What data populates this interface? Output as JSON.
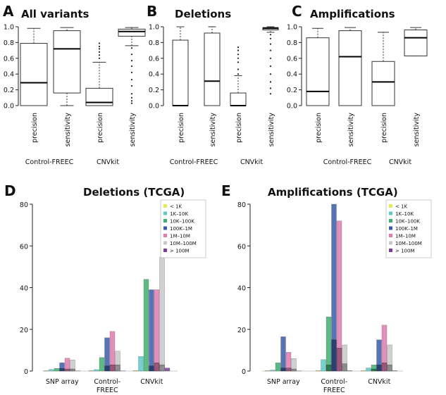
{
  "figure": {
    "chart_data": [
      {
        "panel": "A",
        "type": "box",
        "title": "All variants",
        "ylim": [
          0,
          1.0
        ],
        "yticks": [
          "0.0",
          "0.2",
          "0.4",
          "0.6",
          "0.8",
          "1.0"
        ],
        "boxes": [
          {
            "label": "precision",
            "min": 0.0,
            "q1": 0.0,
            "median": 0.29,
            "q3": 0.79,
            "max": 0.98,
            "outliers": []
          },
          {
            "label": "sensitivity",
            "min": 0.0,
            "q1": 0.16,
            "median": 0.72,
            "q3": 0.95,
            "max": 0.99,
            "outliers": []
          },
          {
            "label": "precision",
            "min": 0.0,
            "q1": 0.0,
            "median": 0.04,
            "q3": 0.22,
            "max": 0.55,
            "outliers": [
              0.6,
              0.64,
              0.68,
              0.72,
              0.75,
              0.79
            ]
          },
          {
            "label": "sensitivity",
            "min": 0.76,
            "q1": 0.88,
            "median": 0.94,
            "q3": 0.97,
            "max": 0.99,
            "outliers": [
              0.73,
              0.65,
              0.57,
              0.5,
              0.42,
              0.33,
              0.25,
              0.15,
              0.1,
              0.06,
              0.03
            ]
          }
        ],
        "groups": [
          "Control-FREEC",
          "CNVkit"
        ]
      },
      {
        "panel": "B",
        "type": "box",
        "title": "Deletions",
        "ylim": [
          0,
          1.0
        ],
        "yticks": [
          "0.0",
          "0.2",
          "0.4",
          "0.6",
          "0.8",
          "1.0"
        ],
        "boxes": [
          {
            "label": "precision",
            "min": 0.0,
            "q1": 0.0,
            "median": 0.0,
            "q3": 0.83,
            "max": 1.0,
            "outliers": []
          },
          {
            "label": "sensitivity",
            "min": 0.0,
            "q1": 0.0,
            "median": 0.31,
            "q3": 0.92,
            "max": 1.0,
            "outliers": []
          },
          {
            "label": "precision",
            "min": 0.0,
            "q1": 0.0,
            "median": 0.0,
            "q3": 0.16,
            "max": 0.38,
            "outliers": [
              0.4,
              0.46,
              0.55,
              0.6,
              0.65,
              0.7,
              0.74
            ]
          },
          {
            "label": "sensitivity",
            "min": 0.93,
            "q1": 0.96,
            "median": 0.98,
            "q3": 0.99,
            "max": 1.0,
            "outliers": [
              0.9,
              0.85,
              0.78,
              0.7,
              0.6,
              0.5,
              0.4,
              0.3,
              0.22,
              0.15
            ]
          }
        ],
        "groups": [
          "Control-FREEC",
          "CNVkit"
        ]
      },
      {
        "panel": "C",
        "type": "box",
        "title": "Amplifications",
        "ylim": [
          0,
          1.0
        ],
        "yticks": [
          "0.0",
          "0.2",
          "0.4",
          "0.6",
          "0.8",
          "1.0"
        ],
        "boxes": [
          {
            "label": "precision",
            "min": 0.0,
            "q1": 0.0,
            "median": 0.18,
            "q3": 0.86,
            "max": 0.98,
            "outliers": []
          },
          {
            "label": "sensitivity",
            "min": 0.0,
            "q1": 0.0,
            "median": 0.62,
            "q3": 0.95,
            "max": 0.99,
            "outliers": []
          },
          {
            "label": "precision",
            "min": 0.0,
            "q1": 0.0,
            "median": 0.3,
            "q3": 0.56,
            "max": 0.93,
            "outliers": []
          },
          {
            "label": "sensitivity",
            "min": 0.63,
            "q1": 0.63,
            "median": 0.86,
            "q3": 0.96,
            "max": 0.99,
            "outliers": []
          }
        ],
        "groups": [
          "Control-FREEC",
          "CNVkit"
        ]
      },
      {
        "panel": "D",
        "type": "bar",
        "title": "Deletions (TCGA)",
        "ylim": [
          0,
          80
        ],
        "yticks": [
          "0",
          "20",
          "40",
          "60",
          "80"
        ],
        "categories": [
          "SNP array",
          "Control-\nFREEC",
          "CNVkit"
        ],
        "series": [
          {
            "name": "< 1K",
            "color": "#e8e85a",
            "values": [
              0.2,
              0.2,
              0.3
            ]
          },
          {
            "name": "1K–10K",
            "color": "#5cc8c8",
            "values": [
              0.8,
              0.7,
              7.0
            ]
          },
          {
            "name": "10K–100K",
            "color": "#3fae6f",
            "values": [
              1.3,
              6.5,
              44.0
            ]
          },
          {
            "name": "100K–1M",
            "color": "#3a5ca8",
            "values": [
              4.0,
              16.0,
              39.0
            ]
          },
          {
            "name": "1M–10M",
            "color": "#e07ab0",
            "values": [
              6.2,
              19.0,
              39.0
            ]
          },
          {
            "name": "10M–100M",
            "color": "#c8c8c8",
            "values": [
              5.3,
              9.5,
              54.5
            ]
          },
          {
            "name": "> 100M",
            "color": "#7a3f9a",
            "values": [
              0.1,
              0.1,
              1.5
            ]
          }
        ],
        "overlay": [
          {
            "series": "100K–1M",
            "values": [
              1.3,
              2.5,
              2.5
            ]
          },
          {
            "series": "1M–10M",
            "values": [
              1.0,
              3.0,
              4.0
            ]
          },
          {
            "series": "10M–100M",
            "values": [
              1.0,
              3.0,
              3.0
            ]
          }
        ]
      },
      {
        "panel": "E",
        "type": "bar",
        "title": "Amplifications (TCGA)",
        "ylim": [
          0,
          80
        ],
        "yticks": [
          "0",
          "20",
          "40",
          "60",
          "80"
        ],
        "categories": [
          "SNP array",
          "Control-\nFREEC",
          "CNVkit"
        ],
        "series": [
          {
            "name": "< 1K",
            "color": "#e8e85a",
            "values": [
              0.2,
              0.3,
              0.2
            ]
          },
          {
            "name": "1K–10K",
            "color": "#5cc8c8",
            "values": [
              0.5,
              5.5,
              1.5
            ]
          },
          {
            "name": "10K–100K",
            "color": "#3fae6f",
            "values": [
              4.0,
              26.0,
              3.0
            ]
          },
          {
            "name": "100K–1M",
            "color": "#3a5ca8",
            "values": [
              16.5,
              80.0,
              15.0
            ]
          },
          {
            "name": "1M–10M",
            "color": "#e07ab0",
            "values": [
              9.0,
              72.0,
              22.0
            ]
          },
          {
            "name": "10M–100M",
            "color": "#c8c8c8",
            "values": [
              6.0,
              12.5,
              12.5
            ]
          },
          {
            "name": "> 100M",
            "color": "#7a3f9a",
            "values": [
              0.1,
              0.2,
              0.2
            ]
          }
        ],
        "overlay": [
          {
            "series": "10K–100K",
            "values": [
              0.0,
              3.0,
              1.0
            ]
          },
          {
            "series": "100K–1M",
            "values": [
              1.5,
              15.0,
              3.0
            ]
          },
          {
            "series": "1M–10M",
            "values": [
              1.5,
              11.0,
              4.0
            ]
          },
          {
            "series": "10M–100M",
            "values": [
              1.0,
              3.5,
              3.0
            ]
          }
        ]
      }
    ]
  }
}
